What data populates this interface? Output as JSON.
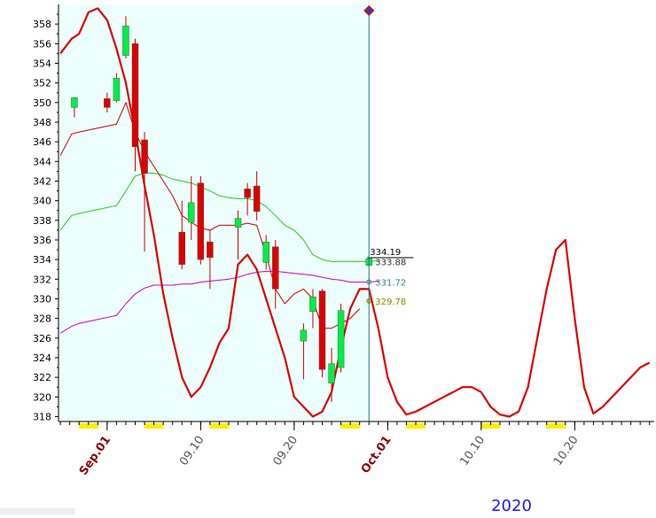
{
  "chart_data": {
    "type": "candlestick",
    "year_label": "2020",
    "x_tick_labels": [
      "Sep.01",
      "09.10",
      "09.20",
      "Oct.01",
      "10.10",
      "10.20"
    ],
    "y_tick_labels": [
      "318",
      "320",
      "322",
      "324",
      "326",
      "328",
      "330",
      "332",
      "334",
      "336",
      "338",
      "340",
      "342",
      "344",
      "346",
      "348",
      "350",
      "352",
      "354",
      "356",
      "358"
    ],
    "ylim": [
      317.5,
      360
    ],
    "candles": [
      {
        "t": 0.5,
        "open": 349.5,
        "close": 350.5,
        "high": 350.5,
        "low": 348.5
      },
      {
        "t": 4.0,
        "open": 350.4,
        "close": 349.5,
        "high": 351.0,
        "low": 349.0
      },
      {
        "t": 5.0,
        "open": 350.2,
        "close": 352.5,
        "high": 353.0,
        "low": 350.0
      },
      {
        "t": 6.0,
        "open": 354.8,
        "close": 357.8,
        "high": 358.8,
        "low": 354.5
      },
      {
        "t": 7.0,
        "open": 356.0,
        "close": 345.5,
        "high": 356.5,
        "low": 343.0
      },
      {
        "t": 8.0,
        "open": 346.2,
        "close": 342.8,
        "high": 347.0,
        "low": 334.8
      },
      {
        "t": 12.0,
        "open": 336.8,
        "close": 333.5,
        "high": 340.0,
        "low": 333.0
      },
      {
        "t": 13.0,
        "open": 337.8,
        "close": 339.8,
        "high": 342.5,
        "low": 336.0
      },
      {
        "t": 14.0,
        "open": 341.8,
        "close": 334.0,
        "high": 342.5,
        "low": 333.5
      },
      {
        "t": 15.0,
        "open": 335.8,
        "close": 334.2,
        "high": 337.0,
        "low": 331.0
      },
      {
        "t": 18.0,
        "open": 337.3,
        "close": 338.2,
        "high": 339.0,
        "low": 334.0
      },
      {
        "t": 19.0,
        "open": 341.2,
        "close": 340.3,
        "high": 341.8,
        "low": 338.5
      },
      {
        "t": 20.0,
        "open": 341.5,
        "close": 338.9,
        "high": 343.0,
        "low": 338.0
      },
      {
        "t": 21.0,
        "open": 333.7,
        "close": 335.8,
        "high": 336.5,
        "low": 333.0
      },
      {
        "t": 22.0,
        "open": 335.3,
        "close": 331.0,
        "high": 336.0,
        "low": 329.0
      },
      {
        "t": 25.0,
        "open": 325.7,
        "close": 326.8,
        "high": 327.5,
        "low": 321.8
      },
      {
        "t": 26.0,
        "open": 328.7,
        "close": 330.2,
        "high": 331.0,
        "low": 327.0
      },
      {
        "t": 27.0,
        "open": 330.8,
        "close": 322.8,
        "high": 331.0,
        "low": 322.0
      },
      {
        "t": 28.0,
        "open": 321.4,
        "close": 323.4,
        "high": 325.0,
        "low": 319.5
      },
      {
        "t": 29.0,
        "open": 323.0,
        "close": 328.8,
        "high": 329.5,
        "low": 322.5
      },
      {
        "t": 32.0,
        "open": 333.4,
        "close": 334.1,
        "high": 334.2,
        "low": 333.3
      }
    ],
    "forecast_line": {
      "t": [
        -1,
        0.2,
        1,
        2,
        3,
        4,
        5,
        6,
        7,
        8,
        9,
        10,
        11,
        12,
        13,
        14,
        15,
        16,
        17,
        18,
        19,
        20,
        21,
        22,
        23,
        24,
        25,
        26,
        27,
        28,
        29,
        30,
        31,
        32,
        33,
        34,
        35,
        36,
        37,
        38,
        39,
        40,
        41,
        42,
        43,
        44,
        45,
        46,
        47,
        48,
        49,
        50,
        51,
        52,
        53,
        54,
        55,
        56,
        57,
        58,
        59,
        60,
        61,
        62
      ],
      "values": [
        355.0,
        356.5,
        357.0,
        359.2,
        359.6,
        358.4,
        355.5,
        352.0,
        347.0,
        341.5,
        336.5,
        330.5,
        326.0,
        322.0,
        320.0,
        321.0,
        323.0,
        325.5,
        327.0,
        333.5,
        334.5,
        333.0,
        330.0,
        327.0,
        324.0,
        320.0,
        319.0,
        318.0,
        318.5,
        320.5,
        325.0,
        329.0,
        331.0,
        331.0,
        327.0,
        322.0,
        319.5,
        318.2,
        318.5,
        319.0,
        319.5,
        320.0,
        320.5,
        321.0,
        321.0,
        320.5,
        319.0,
        318.2,
        318.0,
        318.5,
        321.0,
        326.0,
        331.0,
        335.0,
        336.0,
        328.0,
        321.0,
        318.3,
        319.0,
        320.0,
        321.0,
        322.0,
        323.0,
        323.5
      ]
    },
    "upper_band": {
      "t": [
        -1,
        0.2,
        1,
        5,
        6,
        7,
        8,
        9,
        10,
        11,
        12,
        13,
        14,
        15,
        16,
        17,
        18,
        19,
        20,
        21,
        22,
        23,
        24,
        25,
        26,
        27,
        28,
        29,
        30,
        31
      ],
      "values": [
        344.6,
        346.8,
        347.0,
        347.8,
        350.0,
        347.0,
        345.0,
        343.5,
        342.0,
        340.5,
        338.5,
        337.8,
        337.2,
        337.0,
        337.5,
        337.5,
        337.5,
        337.7,
        337.5,
        334.5,
        331.0,
        329.5,
        330.5,
        331.0,
        330.0,
        327.0,
        327.0,
        327.5,
        328.0,
        329.0
      ]
    },
    "middle_band": {
      "t": [
        -1,
        0.2,
        1,
        5,
        6,
        7,
        8,
        9,
        10,
        11,
        12,
        13,
        14,
        15,
        16,
        17,
        18,
        19,
        20,
        21,
        22,
        23,
        24,
        25,
        26,
        27,
        28,
        29,
        30,
        31,
        32,
        33
      ],
      "values": [
        337.0,
        338.5,
        338.7,
        339.5,
        341.0,
        342.5,
        342.8,
        342.8,
        342.6,
        342.2,
        342.0,
        341.8,
        341.4,
        341.0,
        340.5,
        340.3,
        340.2,
        340.2,
        340.0,
        339.4,
        338.5,
        337.5,
        337.0,
        336.0,
        334.5,
        334.0,
        333.8,
        333.8,
        333.8,
        333.8,
        333.8,
        333.9
      ]
    },
    "lower_band": {
      "t": [
        -1,
        0.2,
        1,
        5,
        6,
        7,
        8,
        9,
        10,
        11,
        12,
        13,
        14,
        15,
        16,
        17,
        18,
        19,
        20,
        21,
        22,
        23,
        24,
        25,
        26,
        27,
        28,
        29,
        30,
        31,
        32,
        33
      ],
      "values": [
        326.5,
        327.2,
        327.5,
        328.3,
        329.5,
        330.5,
        331.1,
        331.4,
        331.4,
        331.4,
        331.5,
        331.5,
        331.7,
        331.8,
        331.9,
        332.0,
        332.2,
        332.5,
        332.7,
        332.8,
        332.8,
        332.7,
        332.6,
        332.5,
        332.4,
        332.2,
        332.0,
        331.9,
        331.7,
        331.7,
        331.7,
        331.8
      ]
    },
    "markers": [
      {
        "label": "334.19",
        "value": 334.19
      },
      {
        "label": "333.88",
        "value": 333.88
      },
      {
        "label": "331.72",
        "value": 331.72
      },
      {
        "label": "329.78",
        "value": 329.78
      }
    ],
    "current_t": 32,
    "current_value": 334.19,
    "t_range": [
      -1.2,
      62.5
    ],
    "x_ticks": [
      {
        "label_index": 0,
        "t": 4,
        "color": "#8b0000"
      },
      {
        "label_index": 1,
        "t": 14,
        "color": "#555555"
      },
      {
        "label_index": 2,
        "t": 24,
        "color": "#555555"
      },
      {
        "label_index": 3,
        "t": 34,
        "color": "#8b0000"
      },
      {
        "label_index": 4,
        "t": 44,
        "color": "#555555"
      },
      {
        "label_index": 5,
        "t": 54,
        "color": "#555555"
      }
    ],
    "yellow_markers_t": [
      2,
      9,
      16,
      30,
      37,
      45,
      52
    ],
    "shaded_range_t": [
      -1.2,
      32
    ],
    "grid": false,
    "colors": {
      "bull": "#00ee44",
      "bear": "#dd0000",
      "forecast": "#dd0000",
      "upper_band": "#cc0000",
      "middle_band": "#22cc22",
      "lower_band": "#cc00cc",
      "shade": "#edfffd",
      "year": "#1a1aff",
      "axis": "#000000"
    }
  }
}
